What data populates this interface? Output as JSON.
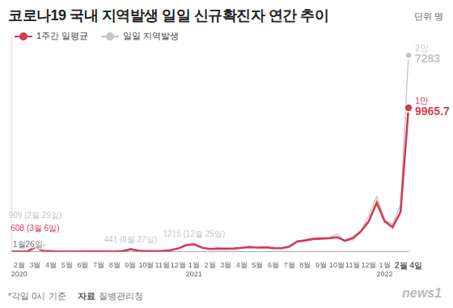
{
  "chart_data": {
    "type": "line",
    "title": "코로나19 국내 지역발생 일일 신규확진자 연간 추이",
    "unit_label": "단위",
    "unit": "명",
    "categories": [
      null,
      "2월",
      null,
      "3월",
      null,
      "4월",
      null,
      "5월",
      null,
      "6월",
      null,
      "7월",
      null,
      "8월",
      null,
      "9월",
      null,
      "10월",
      null,
      "11월",
      null,
      "12월",
      null,
      "1월",
      null,
      "2월",
      null,
      "3월",
      null,
      "4월",
      null,
      "5월",
      null,
      "6월",
      null,
      "7월",
      null,
      "8월",
      null,
      "9월",
      null,
      "10월",
      null,
      "11월",
      null,
      "12월",
      null,
      "1월",
      null,
      null,
      "2월 4일"
    ],
    "x_year_labels": [
      null,
      "2020",
      null,
      null,
      null,
      null,
      null,
      null,
      null,
      null,
      null,
      null,
      null,
      null,
      null,
      null,
      null,
      null,
      null,
      null,
      null,
      null,
      null,
      "2021",
      null,
      null,
      null,
      null,
      null,
      null,
      null,
      null,
      null,
      null,
      null,
      null,
      null,
      null,
      null,
      null,
      null,
      null,
      null,
      null,
      null,
      null,
      null,
      "2022",
      null,
      null,
      null
    ],
    "series": [
      {
        "name": "1주간 일평균",
        "color": "#d23c50",
        "values": [
          2,
          2,
          1,
          608,
          100,
          80,
          25,
          8,
          15,
          35,
          35,
          40,
          30,
          15,
          80,
          320,
          130,
          80,
          60,
          95,
          180,
          430,
          890,
          1000,
          560,
          350,
          420,
          400,
          430,
          520,
          620,
          560,
          590,
          480,
          460,
          700,
          1400,
          1550,
          1750,
          1800,
          1850,
          2000,
          1500,
          1900,
          2800,
          4200,
          6800,
          4200,
          3400,
          5500,
          19965.7
        ]
      },
      {
        "name": "일일 지역발생",
        "color": "#c4c4c4",
        "values": [
          3,
          1,
          0,
          909,
          70,
          80,
          20,
          5,
          15,
          35,
          35,
          45,
          30,
          20,
          100,
          441,
          140,
          90,
          60,
          100,
          200,
          440,
          1000,
          1215,
          520,
          350,
          450,
          340,
          450,
          530,
          690,
          600,
          620,
          450,
          520,
          750,
          1500,
          1600,
          1900,
          1950,
          2000,
          2450,
          1500,
          1600,
          2800,
          5000,
          7600,
          4400,
          3800,
          6500,
          27283
        ]
      }
    ],
    "ylim": [
      0,
      30000
    ],
    "grid": false,
    "tick_labels": "x",
    "start_label": "1월26일-",
    "peak_labels": [
      {
        "text": "608 (3월 6일)",
        "value": 608,
        "index": 3,
        "series": "1주간 일평균"
      },
      {
        "text": "909 (2월 29일)",
        "value": 909,
        "index": 3,
        "series": "일일 지역발생"
      },
      {
        "text": "441 (8월 27일)",
        "value": 441,
        "index": 15,
        "series": "일일 지역발생"
      },
      {
        "text": "1215 (12월 25일)",
        "value": 1215,
        "index": 23,
        "series": "일일 지역발생"
      }
    ],
    "end_labels": [
      {
        "lines": [
          "2만",
          "7283"
        ],
        "value": 27283,
        "index": 50,
        "series": "일일 지역발생"
      },
      {
        "lines": [
          "1만",
          "9965.7"
        ],
        "value": 19965.7,
        "index": 50,
        "series": "1주간 일평균"
      }
    ],
    "footer": {
      "note": "*각일 0시 기준",
      "source_label": "자료",
      "source": "질병관리청"
    },
    "logo": "news1"
  }
}
